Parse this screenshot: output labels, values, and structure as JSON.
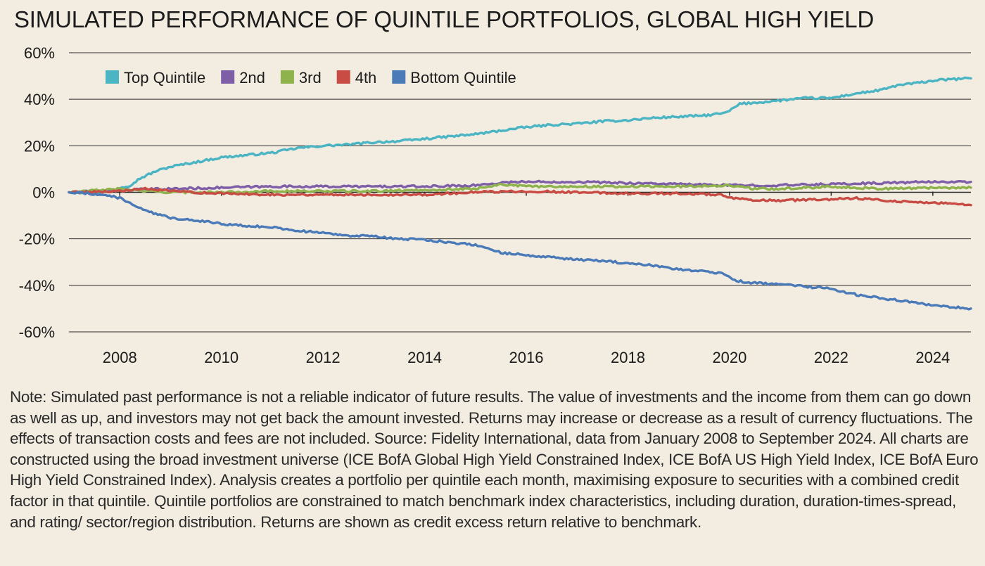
{
  "chart_data": {
    "type": "line",
    "title": "SIMULATED PERFORMANCE OF QUINTILE PORTFOLIOS, GLOBAL HIGH YIELD",
    "xlabel": "",
    "ylabel": "",
    "x_range": [
      2007.0,
      2024.75
    ],
    "ylim": [
      -60,
      60
    ],
    "y_ticks": [
      60,
      40,
      20,
      0,
      -20,
      -40,
      -60
    ],
    "y_tick_labels": [
      "60%",
      "40%",
      "20%",
      "0%",
      "-20%",
      "-40%",
      "-60%"
    ],
    "x_ticks": [
      2008,
      2010,
      2012,
      2014,
      2016,
      2018,
      2020,
      2022,
      2024
    ],
    "x_tick_labels": [
      "2008",
      "2010",
      "2012",
      "2014",
      "2016",
      "2018",
      "2020",
      "2022",
      "2024"
    ],
    "grid": "horizontal",
    "legend_position": "top-left",
    "series": [
      {
        "name": "Top Quintile",
        "color": "#4cb5c4",
        "points": [
          [
            2007.0,
            0
          ],
          [
            2007.5,
            0
          ],
          [
            2007.8,
            0.5
          ],
          [
            2008.0,
            2
          ],
          [
            2008.2,
            3
          ],
          [
            2008.4,
            6
          ],
          [
            2008.7,
            9
          ],
          [
            2009.0,
            11
          ],
          [
            2009.5,
            13
          ],
          [
            2010.0,
            15
          ],
          [
            2010.5,
            16
          ],
          [
            2011.0,
            17
          ],
          [
            2011.5,
            19
          ],
          [
            2012.0,
            20
          ],
          [
            2012.5,
            20.5
          ],
          [
            2013.0,
            21.5
          ],
          [
            2013.5,
            22
          ],
          [
            2014.0,
            23
          ],
          [
            2014.5,
            24
          ],
          [
            2015.0,
            25
          ],
          [
            2015.5,
            26.5
          ],
          [
            2016.0,
            28
          ],
          [
            2016.5,
            29
          ],
          [
            2017.0,
            29.5
          ],
          [
            2017.5,
            30.5
          ],
          [
            2018.0,
            31
          ],
          [
            2018.5,
            32
          ],
          [
            2019.0,
            32.5
          ],
          [
            2019.5,
            33
          ],
          [
            2019.9,
            34
          ],
          [
            2020.0,
            35
          ],
          [
            2020.2,
            38
          ],
          [
            2020.5,
            38.5
          ],
          [
            2021.0,
            39.5
          ],
          [
            2021.5,
            40.5
          ],
          [
            2022.0,
            40.5
          ],
          [
            2022.5,
            42.5
          ],
          [
            2023.0,
            44
          ],
          [
            2023.3,
            46
          ],
          [
            2023.7,
            47
          ],
          [
            2024.0,
            48
          ],
          [
            2024.3,
            48.5
          ],
          [
            2024.75,
            49
          ]
        ]
      },
      {
        "name": "2nd",
        "color": "#7d5ea7",
        "points": [
          [
            2007.0,
            0
          ],
          [
            2008.0,
            1
          ],
          [
            2009.0,
            1.5
          ],
          [
            2010.0,
            2
          ],
          [
            2011.0,
            2.5
          ],
          [
            2012.0,
            2.5
          ],
          [
            2013.0,
            2.5
          ],
          [
            2014.0,
            2.5
          ],
          [
            2015.0,
            3
          ],
          [
            2015.7,
            4.5
          ],
          [
            2016.0,
            4.5
          ],
          [
            2017.0,
            4.5
          ],
          [
            2018.0,
            4
          ],
          [
            2019.0,
            3.5
          ],
          [
            2020.0,
            3
          ],
          [
            2021.0,
            3
          ],
          [
            2022.0,
            3.5
          ],
          [
            2023.0,
            4
          ],
          [
            2024.0,
            4.5
          ],
          [
            2024.75,
            4.5
          ]
        ]
      },
      {
        "name": "3rd",
        "color": "#8fb34c",
        "points": [
          [
            2007.0,
            0
          ],
          [
            2008.0,
            1.5
          ],
          [
            2008.5,
            0.5
          ],
          [
            2009.0,
            0
          ],
          [
            2010.0,
            0
          ],
          [
            2011.0,
            0.5
          ],
          [
            2012.0,
            0.5
          ],
          [
            2013.0,
            0.5
          ],
          [
            2014.0,
            1
          ],
          [
            2015.0,
            1.5
          ],
          [
            2015.5,
            3.5
          ],
          [
            2016.0,
            2.5
          ],
          [
            2017.0,
            2.5
          ],
          [
            2018.0,
            2.5
          ],
          [
            2019.0,
            2.5
          ],
          [
            2020.0,
            3
          ],
          [
            2020.5,
            1.5
          ],
          [
            2021.0,
            1.5
          ],
          [
            2022.0,
            2.5
          ],
          [
            2022.5,
            2
          ],
          [
            2023.0,
            1.5
          ],
          [
            2024.0,
            2
          ],
          [
            2024.75,
            2
          ]
        ]
      },
      {
        "name": "4th",
        "color": "#c84c44",
        "points": [
          [
            2007.0,
            0
          ],
          [
            2008.0,
            0.5
          ],
          [
            2008.5,
            1.5
          ],
          [
            2009.0,
            0.5
          ],
          [
            2010.0,
            -0.5
          ],
          [
            2011.0,
            -1
          ],
          [
            2012.0,
            -1
          ],
          [
            2013.0,
            -1
          ],
          [
            2014.0,
            -1
          ],
          [
            2015.0,
            0
          ],
          [
            2016.0,
            0.5
          ],
          [
            2017.0,
            0
          ],
          [
            2018.0,
            -0.5
          ],
          [
            2019.0,
            -0.5
          ],
          [
            2019.8,
            -1
          ],
          [
            2020.0,
            -2.5
          ],
          [
            2020.5,
            -3.5
          ],
          [
            2021.0,
            -3.5
          ],
          [
            2022.0,
            -3
          ],
          [
            2022.5,
            -2.5
          ],
          [
            2023.0,
            -3.5
          ],
          [
            2023.5,
            -4
          ],
          [
            2024.0,
            -4.5
          ],
          [
            2024.75,
            -5.5
          ]
        ]
      },
      {
        "name": "Bottom Quintile",
        "color": "#4a7ab8",
        "points": [
          [
            2007.0,
            0
          ],
          [
            2007.4,
            -0.5
          ],
          [
            2007.8,
            -1.5
          ],
          [
            2008.0,
            -2.5
          ],
          [
            2008.2,
            -4.5
          ],
          [
            2008.5,
            -8
          ],
          [
            2009.0,
            -11
          ],
          [
            2009.5,
            -12
          ],
          [
            2010.0,
            -13.5
          ],
          [
            2010.5,
            -14.5
          ],
          [
            2011.0,
            -15
          ],
          [
            2011.5,
            -16.5
          ],
          [
            2012.0,
            -17.5
          ],
          [
            2012.5,
            -18.5
          ],
          [
            2013.0,
            -19
          ],
          [
            2013.5,
            -20
          ],
          [
            2014.0,
            -20.5
          ],
          [
            2014.5,
            -21.5
          ],
          [
            2015.0,
            -22.5
          ],
          [
            2015.5,
            -26
          ],
          [
            2016.0,
            -27
          ],
          [
            2016.5,
            -28
          ],
          [
            2017.0,
            -29
          ],
          [
            2017.5,
            -29.5
          ],
          [
            2018.0,
            -30.5
          ],
          [
            2018.5,
            -31.5
          ],
          [
            2019.0,
            -33
          ],
          [
            2019.5,
            -34
          ],
          [
            2019.9,
            -35
          ],
          [
            2020.1,
            -38
          ],
          [
            2020.5,
            -39
          ],
          [
            2021.0,
            -39.5
          ],
          [
            2021.5,
            -40.5
          ],
          [
            2022.0,
            -41.5
          ],
          [
            2022.5,
            -44
          ],
          [
            2023.0,
            -45.5
          ],
          [
            2023.5,
            -47
          ],
          [
            2024.0,
            -48.5
          ],
          [
            2024.75,
            -50
          ]
        ]
      }
    ]
  },
  "note": "Note: Simulated past performance is not a reliable indicator of future results. The value of investments and the income from them can go down as well as up, and investors may not get back the amount invested. Returns may increase or decrease as a result of currency fluctuations. The effects of transaction costs and fees are not included. Source: Fidelity International, data from January 2008 to September 2024. All charts are constructed using the broad investment universe (ICE BofA Global High Yield Constrained Index, ICE BofA US High Yield Index, ICE BofA Euro High Yield Constrained Index). Analysis creates a portfolio per quintile each month, maximising exposure to securities with a combined credit factor in that quintile. Quintile portfolios are constrained to match benchmark index characteristics, including duration, duration-times-spread, and rating/ sector/region distribution. Returns are shown as credit excess return relative to benchmark.",
  "colors": {
    "background": "#f2ece1",
    "gridline": "#2a2a2a",
    "text": "#1c1c1c"
  }
}
